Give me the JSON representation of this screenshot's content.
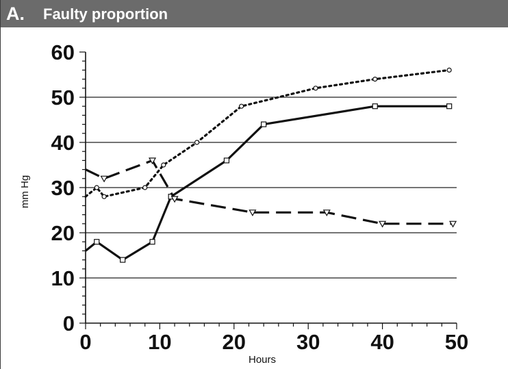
{
  "panel": {
    "letter": "A.",
    "title": "Faulty proportion"
  },
  "chart_data": {
    "type": "line",
    "title": "Faulty proportion",
    "xlabel": "Hours",
    "ylabel": "mm Hg",
    "xlim": [
      0,
      50
    ],
    "ylim": [
      0,
      60
    ],
    "x_ticks": [
      0,
      10,
      20,
      30,
      40,
      50
    ],
    "y_ticks": [
      0,
      10,
      20,
      30,
      40,
      50,
      60
    ],
    "grid": "horizontal",
    "series": [
      {
        "marker": "circle",
        "style": "dotted",
        "x": [
          0,
          1.5,
          2.5,
          8,
          10.5,
          15,
          21,
          31,
          39,
          49
        ],
        "y": [
          28,
          30,
          28,
          30,
          35,
          40,
          48,
          52,
          54,
          56
        ]
      },
      {
        "marker": "square",
        "style": "solid",
        "x": [
          0,
          1.5,
          5,
          9,
          11.5,
          19,
          24,
          39,
          49
        ],
        "y": [
          16,
          18,
          14,
          18,
          28,
          36,
          44,
          48,
          48
        ]
      },
      {
        "marker": "triangle-down",
        "style": "dashed",
        "x": [
          0,
          2.5,
          9,
          12,
          22.5,
          32.5,
          40,
          49.5
        ],
        "y": [
          34,
          32,
          36,
          27.5,
          24.5,
          24.5,
          22,
          22
        ]
      }
    ]
  }
}
